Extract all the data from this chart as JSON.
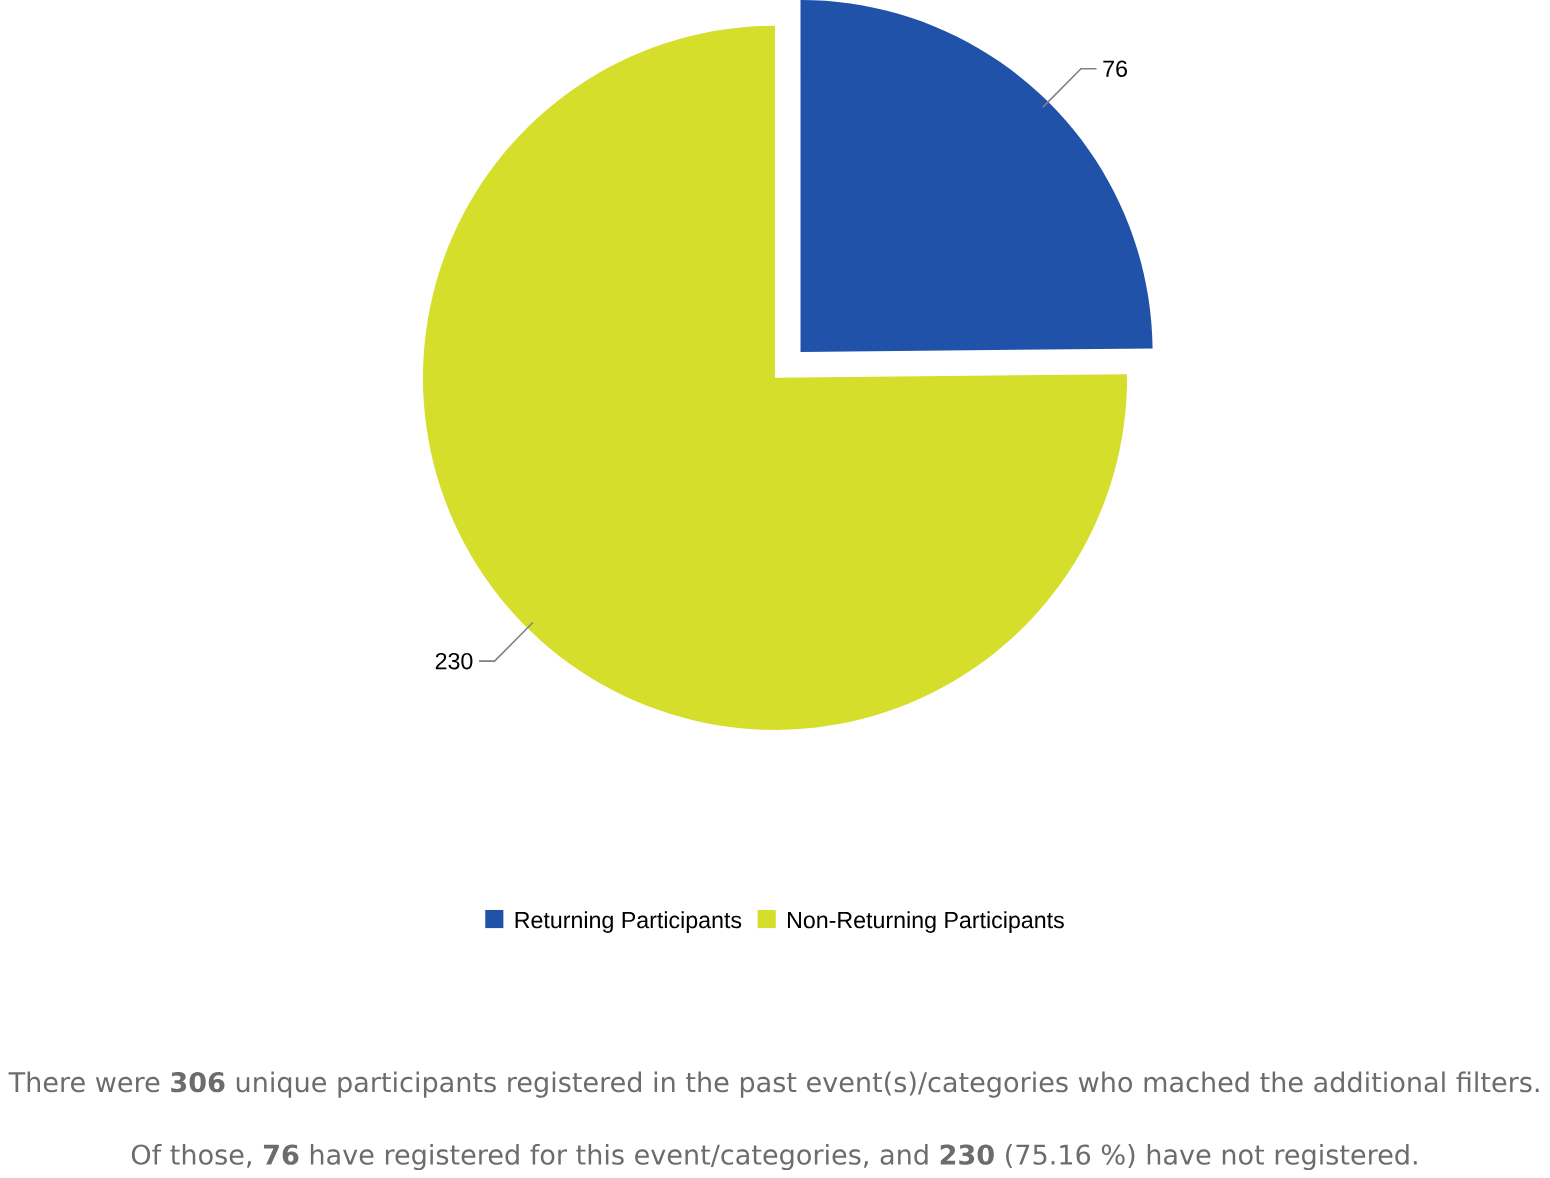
{
  "chart_data": {
    "type": "pie",
    "categories": [
      "Returning Participants",
      "Non-Returning Participants"
    ],
    "values": [
      76,
      230
    ],
    "colors": [
      "#1f52a8",
      "#d6de2c"
    ],
    "data_labels": true,
    "legend": "bottom",
    "annotations": [
      "There were **306** unique participants registered in the past event(s)/categories who mached the additional filters.",
      "Of those, **76** have registered for this event/categories, and **230** (75.16 %) have not registered."
    ]
  }
}
